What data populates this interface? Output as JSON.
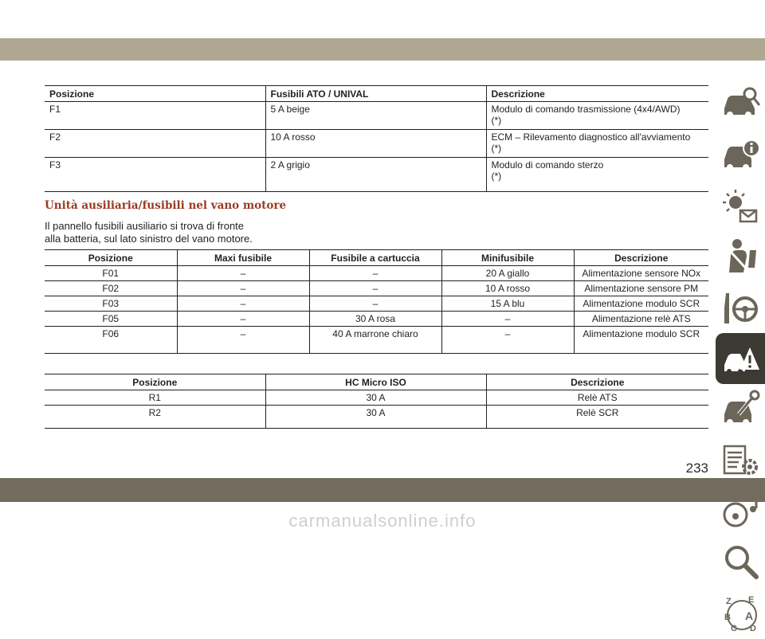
{
  "page_number": "233",
  "footer_url": "carmanualsonline.info",
  "table1": {
    "headers": [
      "Posizione",
      "Fusibili ATO / UNIVAL",
      "Descrizione"
    ],
    "rows": [
      [
        "F1",
        "5 A beige",
        "Modulo di comando trasmissione (4x4/AWD)",
        "(*)"
      ],
      [
        "F2",
        "10 A rosso",
        "ECM – Rilevamento diagnostico all'avviamento",
        "(*)"
      ],
      [
        "F3",
        "2 A grigio",
        "Modulo di comando sterzo",
        "(*)"
      ]
    ]
  },
  "section": {
    "title": "Unità ausiliaria/fusibili nel vano motore",
    "intro_line1": "Il pannello fusibili ausiliario si trova di fronte",
    "intro_line2": "alla batteria, sul lato sinistro del vano motore."
  },
  "table2": {
    "headers": [
      "Posizione",
      "Maxi fusibile",
      "Fusibile a cartuccia",
      "Minifusibile",
      "Descrizione"
    ],
    "rows": [
      [
        "F01",
        "–",
        "–",
        "20 A giallo",
        "Alimentazione sensore NOx"
      ],
      [
        "F02",
        "–",
        "–",
        "10 A rosso",
        "Alimentazione sensore PM"
      ],
      [
        "F03",
        "–",
        "–",
        "15 A blu",
        "Alimentazione modulo SCR"
      ],
      [
        "F05",
        "–",
        "30 A rosa",
        "–",
        "Alimentazione relè ATS"
      ],
      [
        "F06",
        "–",
        "40 A marrone chiaro",
        "–",
        "Alimentazione modulo SCR"
      ]
    ]
  },
  "table3": {
    "headers": [
      "Posizione",
      "HC Micro ISO",
      "Descrizione"
    ],
    "rows": [
      [
        "R1",
        "30 A",
        "Relè ATS"
      ],
      [
        "R2",
        "30 A",
        "Relè SCR"
      ]
    ]
  },
  "side_nav": {
    "items": [
      {
        "icon": "car-key-icon"
      },
      {
        "icon": "dashboard-info-icon"
      },
      {
        "icon": "warning-lights-icon"
      },
      {
        "icon": "seatbelt-safety-icon"
      },
      {
        "icon": "steering-wheel-icon"
      },
      {
        "icon": "roadside-warning-icon",
        "active": true
      },
      {
        "icon": "car-maintenance-icon"
      },
      {
        "icon": "technical-specs-icon"
      },
      {
        "icon": "multimedia-icon"
      },
      {
        "icon": "search-index-icon"
      },
      {
        "icon": "alphabetical-index-icon"
      }
    ],
    "alpha_letters": [
      "Z",
      "E",
      "B",
      "A",
      "C",
      "D"
    ]
  },
  "colors": {
    "top_band": "#b0a793",
    "bottom_band": "#726b5e",
    "section_title": "#9b3a22",
    "nav_active": "#3c3a32",
    "nav_icon": "#6b6659"
  }
}
